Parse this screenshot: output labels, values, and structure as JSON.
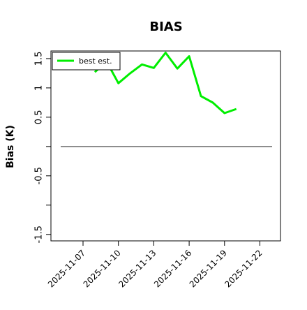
{
  "chart_data": {
    "type": "line",
    "title": "BIAS",
    "y_label": "Bias (K)",
    "x": [
      "2025-11-08",
      "2025-11-09",
      "2025-11-10",
      "2025-11-11",
      "2025-11-12",
      "2025-11-13",
      "2025-11-14",
      "2025-11-15",
      "2025-11-16",
      "2025-11-17",
      "2025-11-18",
      "2025-11-19",
      "2025-11-20"
    ],
    "series": [
      {
        "name": "best est.",
        "color": "#00ee00",
        "values": [
          1.27,
          1.45,
          1.08,
          1.25,
          1.4,
          1.34,
          1.6,
          1.33,
          1.54,
          0.86,
          0.75,
          0.57,
          0.64
        ]
      }
    ],
    "ylim": [
      -1.61,
      1.63
    ],
    "yticks": [
      1.5,
      1.0,
      0.5,
      {
        "value": 0,
        "label": null
      },
      -0.5,
      {
        "value": -1.0,
        "label": null
      },
      -1.5
    ],
    "xticks": [
      "2025-11-07",
      "2025-11-10",
      "2025-11-13",
      "2025-11-16",
      "2025-11-19",
      "2025-11-22"
    ],
    "reference_line": 0,
    "legend": "upper left"
  }
}
